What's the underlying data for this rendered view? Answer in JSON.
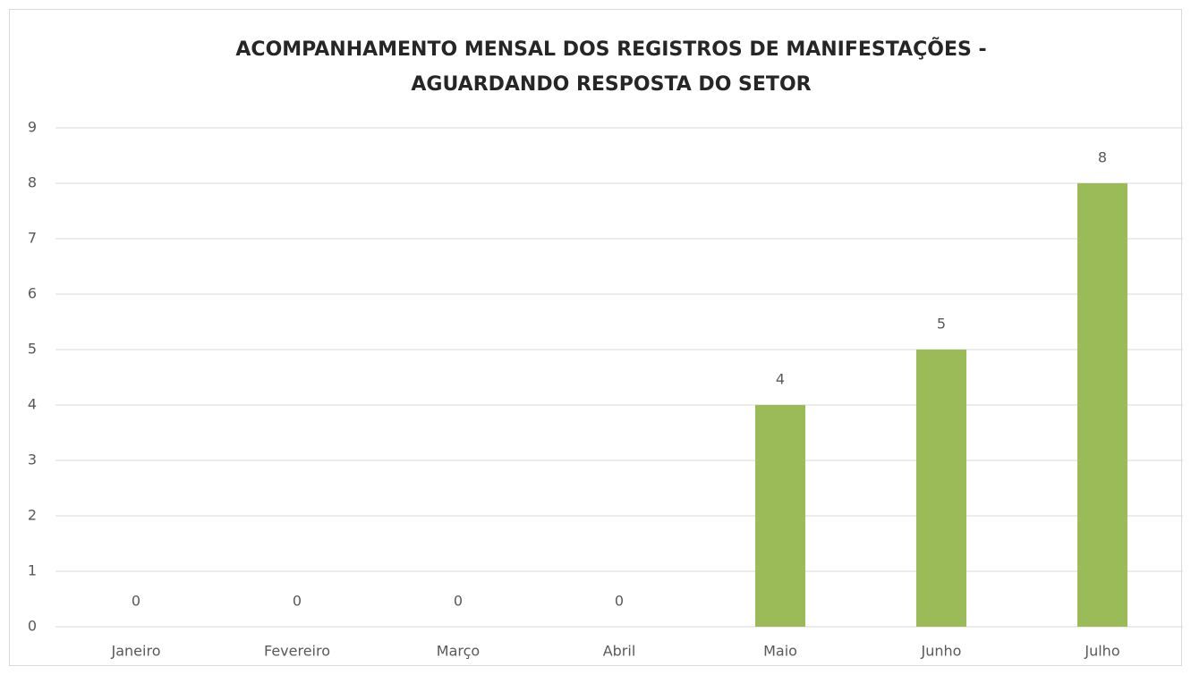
{
  "chart_data": {
    "type": "bar",
    "title": [
      "ACOMPANHAMENTO MENSAL DOS REGISTROS DE MANIFESTAÇÕES -",
      "AGUARDANDO RESPOSTA DO SETOR"
    ],
    "categories": [
      "Janeiro",
      "Fevereiro",
      "Março",
      "Abril",
      "Maio",
      "Junho",
      "Julho"
    ],
    "values": [
      0,
      0,
      0,
      0,
      4,
      5,
      8
    ],
    "color": "#9bbb59",
    "ylim": [
      0,
      9
    ],
    "yticks": [
      0,
      1,
      2,
      3,
      4,
      5,
      6,
      7,
      8,
      9
    ],
    "grid": true
  }
}
